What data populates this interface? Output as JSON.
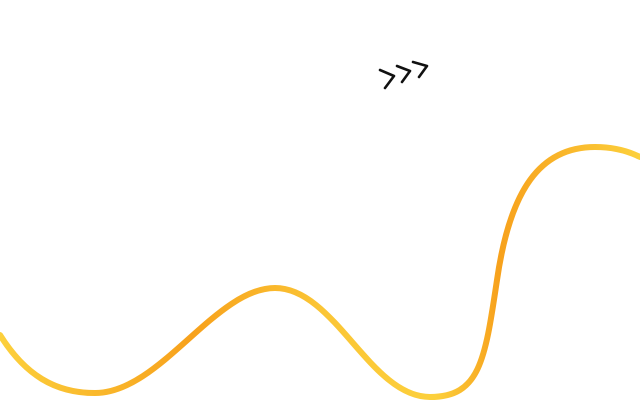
{
  "decor": {
    "chevrons_icon": "triple-chevron-right-icon",
    "wave_colors": {
      "light": "#fcd03c",
      "dark": "#f7a11c"
    },
    "chevron_color": "#111111"
  }
}
